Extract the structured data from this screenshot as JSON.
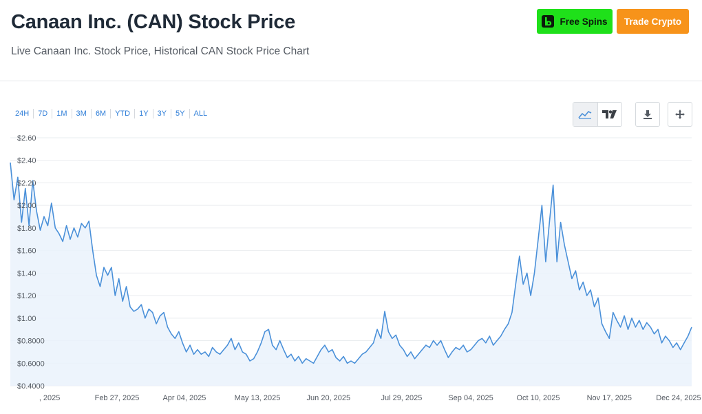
{
  "header": {
    "title": "Canaan Inc. (CAN) Stock Price",
    "subtitle": "Live Canaan Inc. Stock Price, Historical CAN Stock Price Chart",
    "free_spins_label": "Free Spins",
    "trade_crypto_label": "Trade Crypto"
  },
  "toolbar": {
    "ranges": [
      "24H",
      "7D",
      "1M",
      "3M",
      "6M",
      "YTD",
      "1Y",
      "3Y",
      "5Y",
      "ALL"
    ],
    "icons": [
      "line-chart-icon",
      "tradingview-icon",
      "download-icon",
      "pan-icon"
    ]
  },
  "colors": {
    "line": "#4a90d9",
    "fill": "#eaf2fc",
    "grid": "#e9ecef",
    "spins": "#1fe01a",
    "crypto": "#f7931a"
  },
  "chart_data": {
    "type": "area",
    "title": "",
    "xlabel": "",
    "ylabel": "",
    "ylim": [
      0.4,
      2.6
    ],
    "yticks": [
      0.4,
      0.6,
      0.8,
      1.0,
      1.2,
      1.4,
      1.6,
      1.8,
      2.0,
      2.2,
      2.4,
      2.6
    ],
    "yticklabels": [
      "$0.4000",
      "$0.6000",
      "$0.8000",
      "$1.00",
      "$1.20",
      "$1.40",
      "$1.60",
      "$1.80",
      "$2.00",
      "$2.20",
      "$2.40",
      "$2.60"
    ],
    "xticklabels": [
      ", 2025",
      "Feb 27, 2025",
      "Apr 04, 2025",
      "May 13, 2025",
      "Jun 20, 2025",
      "Jul 29, 2025",
      "Sep 04, 2025",
      "Oct 10, 2025",
      "Nov 17, 2025",
      "Dec 24, 2025"
    ],
    "xtick_days": [
      21,
      57,
      93,
      132,
      170,
      209,
      246,
      282,
      320,
      357
    ],
    "x_start": "2025-01-01",
    "x_end": "2025-12-31",
    "grid": true,
    "series": [
      {
        "values": [
          [
            "2025-01-01",
            2.38
          ],
          [
            "2025-01-03",
            2.05
          ],
          [
            "2025-01-05",
            2.25
          ],
          [
            "2025-01-07",
            1.85
          ],
          [
            "2025-01-09",
            2.15
          ],
          [
            "2025-01-11",
            1.82
          ],
          [
            "2025-01-13",
            2.22
          ],
          [
            "2025-01-15",
            1.95
          ],
          [
            "2025-01-17",
            1.78
          ],
          [
            "2025-01-19",
            1.9
          ],
          [
            "2025-01-21",
            1.82
          ],
          [
            "2025-01-23",
            2.02
          ],
          [
            "2025-01-25",
            1.8
          ],
          [
            "2025-01-27",
            1.75
          ],
          [
            "2025-01-29",
            1.68
          ],
          [
            "2025-01-31",
            1.82
          ],
          [
            "2025-02-02",
            1.7
          ],
          [
            "2025-02-04",
            1.8
          ],
          [
            "2025-02-06",
            1.72
          ],
          [
            "2025-02-08",
            1.84
          ],
          [
            "2025-02-10",
            1.8
          ],
          [
            "2025-02-12",
            1.86
          ],
          [
            "2025-02-14",
            1.6
          ],
          [
            "2025-02-16",
            1.38
          ],
          [
            "2025-02-18",
            1.28
          ],
          [
            "2025-02-20",
            1.45
          ],
          [
            "2025-02-22",
            1.38
          ],
          [
            "2025-02-24",
            1.45
          ],
          [
            "2025-02-26",
            1.2
          ],
          [
            "2025-02-28",
            1.35
          ],
          [
            "2025-03-02",
            1.15
          ],
          [
            "2025-03-04",
            1.28
          ],
          [
            "2025-03-06",
            1.1
          ],
          [
            "2025-03-08",
            1.06
          ],
          [
            "2025-03-10",
            1.08
          ],
          [
            "2025-03-12",
            1.12
          ],
          [
            "2025-03-14",
            1.0
          ],
          [
            "2025-03-16",
            1.08
          ],
          [
            "2025-03-18",
            1.05
          ],
          [
            "2025-03-20",
            0.95
          ],
          [
            "2025-03-22",
            1.02
          ],
          [
            "2025-03-24",
            1.05
          ],
          [
            "2025-03-26",
            0.92
          ],
          [
            "2025-03-28",
            0.86
          ],
          [
            "2025-03-30",
            0.82
          ],
          [
            "2025-04-01",
            0.88
          ],
          [
            "2025-04-03",
            0.78
          ],
          [
            "2025-04-05",
            0.7
          ],
          [
            "2025-04-07",
            0.76
          ],
          [
            "2025-04-09",
            0.68
          ],
          [
            "2025-04-11",
            0.72
          ],
          [
            "2025-04-13",
            0.68
          ],
          [
            "2025-04-15",
            0.7
          ],
          [
            "2025-04-17",
            0.66
          ],
          [
            "2025-04-19",
            0.74
          ],
          [
            "2025-04-21",
            0.7
          ],
          [
            "2025-04-23",
            0.68
          ],
          [
            "2025-04-25",
            0.72
          ],
          [
            "2025-04-27",
            0.76
          ],
          [
            "2025-04-29",
            0.82
          ],
          [
            "2025-05-01",
            0.72
          ],
          [
            "2025-05-03",
            0.78
          ],
          [
            "2025-05-05",
            0.7
          ],
          [
            "2025-05-07",
            0.68
          ],
          [
            "2025-05-09",
            0.62
          ],
          [
            "2025-05-11",
            0.64
          ],
          [
            "2025-05-13",
            0.7
          ],
          [
            "2025-05-15",
            0.78
          ],
          [
            "2025-05-17",
            0.88
          ],
          [
            "2025-05-19",
            0.9
          ],
          [
            "2025-05-21",
            0.76
          ],
          [
            "2025-05-23",
            0.72
          ],
          [
            "2025-05-25",
            0.8
          ],
          [
            "2025-05-27",
            0.72
          ],
          [
            "2025-05-29",
            0.65
          ],
          [
            "2025-05-31",
            0.68
          ],
          [
            "2025-06-02",
            0.62
          ],
          [
            "2025-06-04",
            0.66
          ],
          [
            "2025-06-06",
            0.6
          ],
          [
            "2025-06-08",
            0.64
          ],
          [
            "2025-06-10",
            0.62
          ],
          [
            "2025-06-12",
            0.6
          ],
          [
            "2025-06-14",
            0.66
          ],
          [
            "2025-06-16",
            0.72
          ],
          [
            "2025-06-18",
            0.76
          ],
          [
            "2025-06-20",
            0.7
          ],
          [
            "2025-06-22",
            0.72
          ],
          [
            "2025-06-24",
            0.65
          ],
          [
            "2025-06-26",
            0.62
          ],
          [
            "2025-06-28",
            0.66
          ],
          [
            "2025-06-30",
            0.6
          ],
          [
            "2025-07-02",
            0.62
          ],
          [
            "2025-07-04",
            0.6
          ],
          [
            "2025-07-06",
            0.64
          ],
          [
            "2025-07-08",
            0.68
          ],
          [
            "2025-07-10",
            0.7
          ],
          [
            "2025-07-12",
            0.74
          ],
          [
            "2025-07-14",
            0.78
          ],
          [
            "2025-07-16",
            0.9
          ],
          [
            "2025-07-18",
            0.82
          ],
          [
            "2025-07-20",
            1.06
          ],
          [
            "2025-07-22",
            0.88
          ],
          [
            "2025-07-24",
            0.82
          ],
          [
            "2025-07-26",
            0.85
          ],
          [
            "2025-07-28",
            0.76
          ],
          [
            "2025-07-30",
            0.72
          ],
          [
            "2025-08-01",
            0.66
          ],
          [
            "2025-08-03",
            0.7
          ],
          [
            "2025-08-05",
            0.64
          ],
          [
            "2025-08-07",
            0.68
          ],
          [
            "2025-08-09",
            0.72
          ],
          [
            "2025-08-11",
            0.76
          ],
          [
            "2025-08-13",
            0.74
          ],
          [
            "2025-08-15",
            0.8
          ],
          [
            "2025-08-17",
            0.76
          ],
          [
            "2025-08-19",
            0.8
          ],
          [
            "2025-08-21",
            0.72
          ],
          [
            "2025-08-23",
            0.65
          ],
          [
            "2025-08-25",
            0.7
          ],
          [
            "2025-08-27",
            0.74
          ],
          [
            "2025-08-29",
            0.72
          ],
          [
            "2025-08-31",
            0.76
          ],
          [
            "2025-09-02",
            0.7
          ],
          [
            "2025-09-04",
            0.72
          ],
          [
            "2025-09-06",
            0.76
          ],
          [
            "2025-09-08",
            0.8
          ],
          [
            "2025-09-10",
            0.82
          ],
          [
            "2025-09-12",
            0.78
          ],
          [
            "2025-09-14",
            0.84
          ],
          [
            "2025-09-16",
            0.76
          ],
          [
            "2025-09-18",
            0.8
          ],
          [
            "2025-09-20",
            0.84
          ],
          [
            "2025-09-22",
            0.9
          ],
          [
            "2025-09-24",
            0.95
          ],
          [
            "2025-09-26",
            1.05
          ],
          [
            "2025-09-28",
            1.3
          ],
          [
            "2025-09-30",
            1.55
          ],
          [
            "2025-10-02",
            1.3
          ],
          [
            "2025-10-04",
            1.4
          ],
          [
            "2025-10-06",
            1.2
          ],
          [
            "2025-10-08",
            1.4
          ],
          [
            "2025-10-10",
            1.7
          ],
          [
            "2025-10-12",
            2.0
          ],
          [
            "2025-10-14",
            1.5
          ],
          [
            "2025-10-16",
            1.85
          ],
          [
            "2025-10-18",
            2.18
          ],
          [
            "2025-10-20",
            1.5
          ],
          [
            "2025-10-22",
            1.85
          ],
          [
            "2025-10-24",
            1.65
          ],
          [
            "2025-10-26",
            1.5
          ],
          [
            "2025-10-28",
            1.35
          ],
          [
            "2025-10-30",
            1.42
          ],
          [
            "2025-11-01",
            1.25
          ],
          [
            "2025-11-03",
            1.32
          ],
          [
            "2025-11-05",
            1.2
          ],
          [
            "2025-11-07",
            1.25
          ],
          [
            "2025-11-09",
            1.1
          ],
          [
            "2025-11-11",
            1.18
          ],
          [
            "2025-11-13",
            0.95
          ],
          [
            "2025-11-15",
            0.88
          ],
          [
            "2025-11-17",
            0.82
          ],
          [
            "2025-11-19",
            1.05
          ],
          [
            "2025-11-21",
            0.98
          ],
          [
            "2025-11-23",
            0.92
          ],
          [
            "2025-11-25",
            1.02
          ],
          [
            "2025-11-27",
            0.9
          ],
          [
            "2025-11-29",
            1.0
          ],
          [
            "2025-12-01",
            0.92
          ],
          [
            "2025-12-03",
            0.98
          ],
          [
            "2025-12-05",
            0.9
          ],
          [
            "2025-12-07",
            0.96
          ],
          [
            "2025-12-09",
            0.92
          ],
          [
            "2025-12-11",
            0.86
          ],
          [
            "2025-12-13",
            0.9
          ],
          [
            "2025-12-15",
            0.78
          ],
          [
            "2025-12-17",
            0.84
          ],
          [
            "2025-12-19",
            0.8
          ],
          [
            "2025-12-21",
            0.74
          ],
          [
            "2025-12-23",
            0.78
          ],
          [
            "2025-12-25",
            0.72
          ],
          [
            "2025-12-27",
            0.78
          ],
          [
            "2025-12-29",
            0.84
          ],
          [
            "2025-12-31",
            0.92
          ]
        ]
      }
    ]
  }
}
